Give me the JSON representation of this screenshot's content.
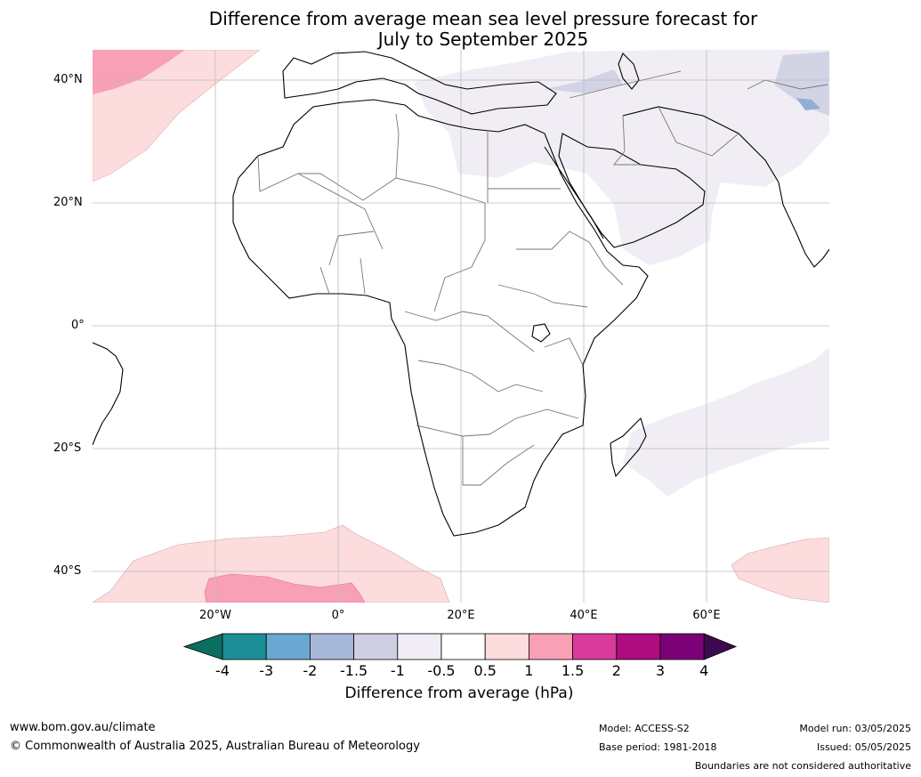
{
  "title_line1": "Difference from average mean sea level pressure forecast for",
  "title_line2": "July to September 2025",
  "map": {
    "lat_ticks": [
      "40°N",
      "20°N",
      "0°",
      "20°S",
      "40°S"
    ],
    "lon_ticks": [
      "20°W",
      "0°",
      "20°E",
      "40°E",
      "60°E"
    ]
  },
  "colorbar": {
    "tick_labels": [
      "-4",
      "-3",
      "-2",
      "-1.5",
      "-1",
      "-0.5",
      "0.5",
      "1",
      "1.5",
      "2",
      "3",
      "4"
    ],
    "label": "Difference from average (hPa)",
    "under_color": "#0b6e5f",
    "over_color": "#3d0a4f",
    "bin_colors": [
      "#1c8e96",
      "#6aa8d1",
      "#a8b8d8",
      "#cfcfe4",
      "#f1edf4",
      "#ffffff",
      "#fcdcdc",
      "#f8a0b6",
      "#da3b9a",
      "#ae0c7f",
      "#7a0176"
    ]
  },
  "footer": {
    "website": "www.bom.gov.au/climate",
    "copyright": "© Commonwealth of Australia 2025, Australian Bureau of Meteorology",
    "model": "Model: ACCESS-S2",
    "base_period": "Base period: 1981-2018",
    "model_run": "Model run: 03/05/2025",
    "issued": "Issued: 05/05/2025",
    "disclaimer": "Boundaries are not considered authoritative"
  }
}
